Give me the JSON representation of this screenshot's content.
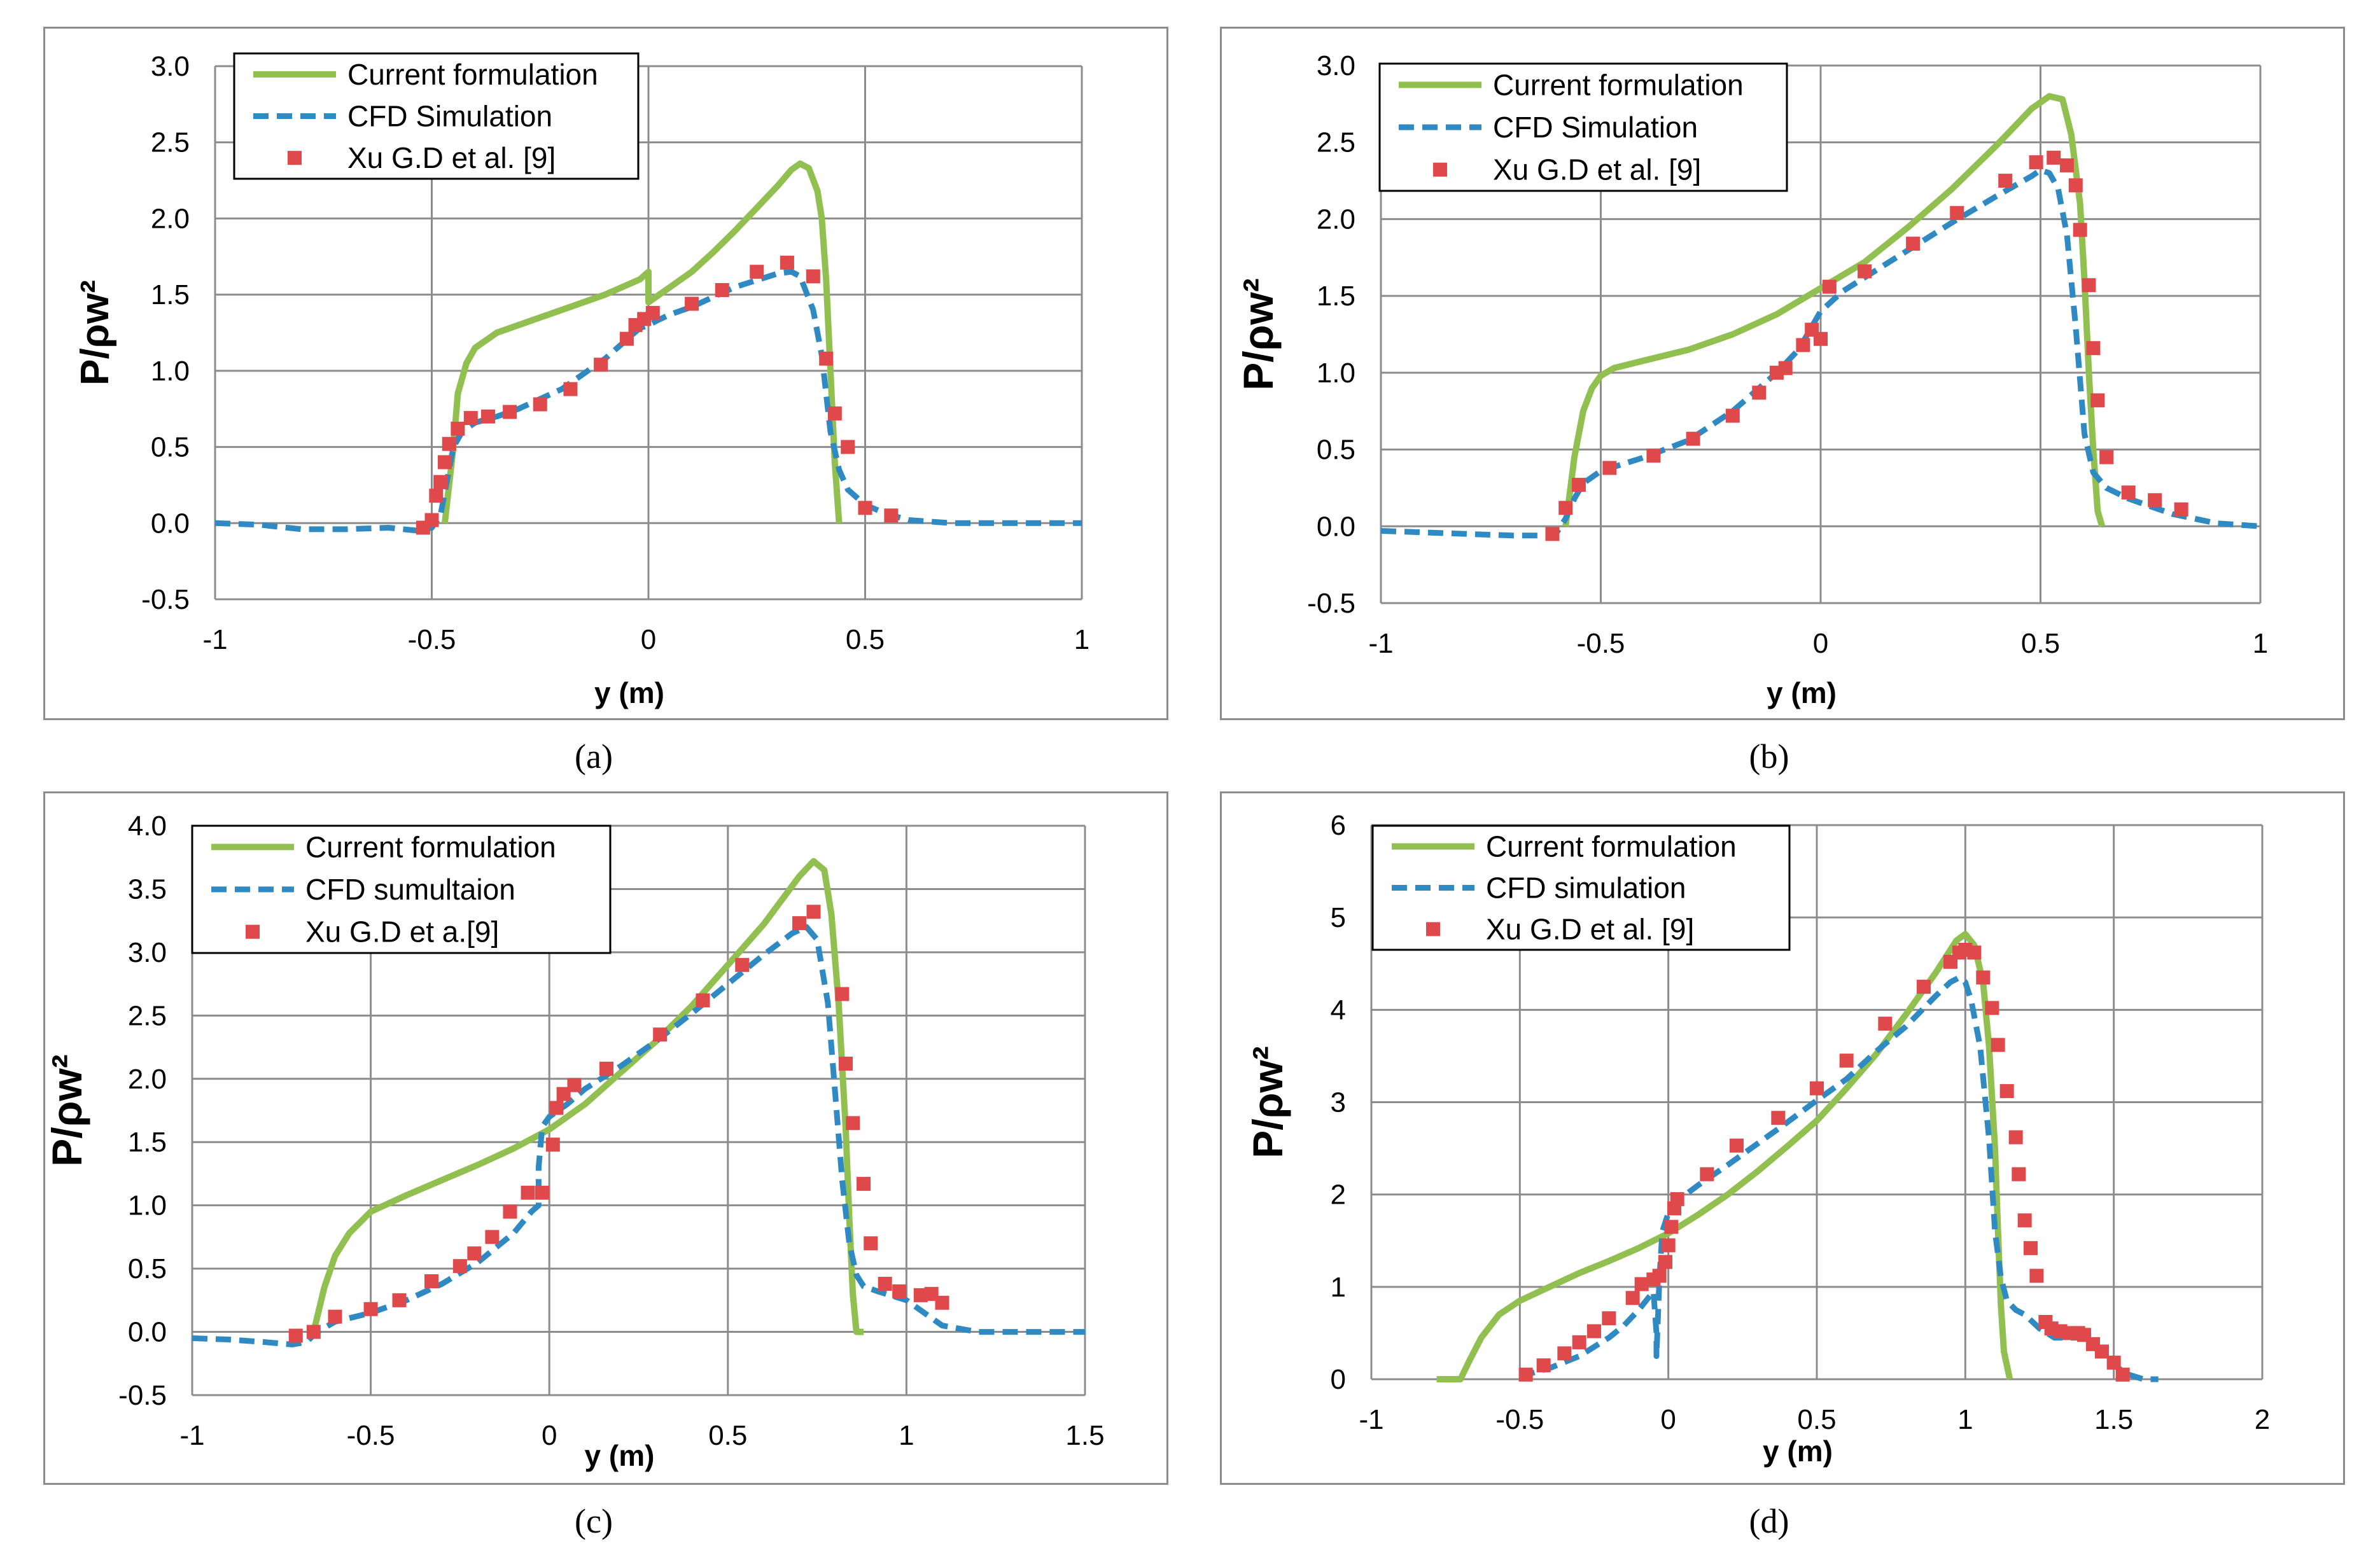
{
  "captions": [
    "(a)",
    "(b)",
    "(c)",
    "(d)"
  ],
  "colors": {
    "green": "#92c050",
    "blue": "#2f8ac4",
    "red": "#e0494b",
    "grid": "#8c8c8c"
  },
  "chart_data": [
    {
      "type": "line",
      "xlabel": "y (m)",
      "ylabel": "P/ρw²",
      "xlim": [
        -1,
        1
      ],
      "ylim": [
        -0.5,
        3.0
      ],
      "xticks": [
        "-1",
        "-0.5",
        "0",
        "0.5",
        "1"
      ],
      "yticks": [
        "-0.5",
        "0.0",
        "0.5",
        "1.0",
        "1.5",
        "2.0",
        "2.5",
        "3.0"
      ],
      "grid": true,
      "legend_position": "top-left",
      "legend": [
        "Current formulation",
        "CFD Simulation",
        "Xu G.D et al. [9]"
      ],
      "series": [
        {
          "name": "Current formulation",
          "style": "solid",
          "color": "green",
          "x": [
            -0.47,
            -0.45,
            -0.44,
            -0.42,
            -0.4,
            -0.35,
            -0.3,
            -0.2,
            -0.1,
            -0.02,
            0.0,
            0.0,
            0.05,
            0.1,
            0.15,
            0.2,
            0.25,
            0.3,
            0.33,
            0.35,
            0.37,
            0.39,
            0.4,
            0.41,
            0.42,
            0.43,
            0.44
          ],
          "y": [
            0.0,
            0.5,
            0.85,
            1.05,
            1.15,
            1.25,
            1.3,
            1.4,
            1.5,
            1.6,
            1.65,
            1.45,
            1.55,
            1.65,
            1.78,
            1.92,
            2.07,
            2.22,
            2.32,
            2.36,
            2.33,
            2.18,
            2.0,
            1.6,
            1.0,
            0.4,
            0.0
          ]
        },
        {
          "name": "CFD Simulation",
          "style": "dashed",
          "color": "blue",
          "x": [
            -1.0,
            -0.9,
            -0.8,
            -0.7,
            -0.6,
            -0.53,
            -0.5,
            -0.48,
            -0.46,
            -0.45,
            -0.43,
            -0.4,
            -0.35,
            -0.3,
            -0.2,
            -0.1,
            -0.02,
            0.0,
            0.02,
            0.05,
            0.1,
            0.2,
            0.3,
            0.33,
            0.35,
            0.38,
            0.4,
            0.42,
            0.44,
            0.46,
            0.5,
            0.55,
            0.6,
            0.7,
            0.8,
            1.0
          ],
          "y": [
            0.0,
            -0.01,
            -0.04,
            -0.04,
            -0.03,
            -0.05,
            -0.03,
            0.05,
            0.35,
            0.5,
            0.6,
            0.66,
            0.7,
            0.75,
            0.88,
            1.08,
            1.28,
            1.3,
            1.33,
            1.37,
            1.42,
            1.55,
            1.64,
            1.65,
            1.62,
            1.4,
            1.1,
            0.6,
            0.35,
            0.22,
            0.12,
            0.06,
            0.02,
            0.0,
            0.0,
            0.0
          ]
        },
        {
          "name": "Xu G.D et al. [9]",
          "style": "markers",
          "color": "red",
          "x": [
            -0.52,
            -0.5,
            -0.49,
            -0.48,
            -0.47,
            -0.46,
            -0.44,
            -0.41,
            -0.37,
            -0.32,
            -0.25,
            -0.18,
            -0.11,
            -0.05,
            -0.03,
            -0.01,
            0.01,
            0.1,
            0.17,
            0.25,
            0.32,
            0.38,
            0.41,
            0.43,
            0.46,
            0.5,
            0.56
          ],
          "y": [
            -0.03,
            0.02,
            0.18,
            0.27,
            0.4,
            0.52,
            0.62,
            0.69,
            0.7,
            0.73,
            0.78,
            0.88,
            1.04,
            1.21,
            1.3,
            1.34,
            1.38,
            1.44,
            1.53,
            1.65,
            1.71,
            1.62,
            1.08,
            0.72,
            0.5,
            0.1,
            0.05
          ]
        }
      ]
    },
    {
      "type": "line",
      "xlabel": "y (m)",
      "ylabel": "P/ρw²",
      "xlim": [
        -1,
        1
      ],
      "ylim": [
        -0.5,
        3.0
      ],
      "xticks": [
        "-1",
        "-0.5",
        "0",
        "0.5",
        "1"
      ],
      "yticks": [
        "-0.5",
        "0.0",
        "0.5",
        "1.0",
        "1.5",
        "2.0",
        "2.5",
        "3.0"
      ],
      "grid": true,
      "legend_position": "top-left",
      "legend": [
        "Current formulation",
        "CFD Simulation",
        "Xu G.D et al. [9]"
      ],
      "series": [
        {
          "name": "Current formulation",
          "style": "solid",
          "color": "green",
          "x": [
            -0.58,
            -0.56,
            -0.54,
            -0.52,
            -0.5,
            -0.47,
            -0.4,
            -0.3,
            -0.2,
            -0.1,
            0.0,
            0.1,
            0.2,
            0.3,
            0.4,
            0.48,
            0.52,
            0.55,
            0.57,
            0.59,
            0.6,
            0.61,
            0.62,
            0.63,
            0.64
          ],
          "y": [
            0.0,
            0.45,
            0.75,
            0.9,
            0.98,
            1.03,
            1.08,
            1.15,
            1.25,
            1.38,
            1.55,
            1.72,
            1.95,
            2.2,
            2.48,
            2.72,
            2.8,
            2.78,
            2.55,
            2.1,
            1.6,
            1.0,
            0.5,
            0.1,
            0.0
          ]
        },
        {
          "name": "CFD Simulation",
          "style": "dashed",
          "color": "blue",
          "x": [
            -1.0,
            -0.9,
            -0.8,
            -0.7,
            -0.62,
            -0.6,
            -0.58,
            -0.56,
            -0.54,
            -0.5,
            -0.4,
            -0.3,
            -0.2,
            -0.1,
            -0.05,
            0.0,
            0.05,
            0.1,
            0.2,
            0.3,
            0.4,
            0.48,
            0.5,
            0.52,
            0.54,
            0.56,
            0.58,
            0.6,
            0.62,
            0.65,
            0.7,
            0.8,
            0.9,
            1.0
          ],
          "y": [
            -0.03,
            -0.04,
            -0.05,
            -0.06,
            -0.06,
            -0.04,
            0.05,
            0.18,
            0.28,
            0.36,
            0.45,
            0.56,
            0.75,
            1.0,
            1.15,
            1.4,
            1.53,
            1.62,
            1.8,
            1.98,
            2.15,
            2.28,
            2.32,
            2.3,
            2.2,
            1.9,
            1.3,
            0.6,
            0.35,
            0.25,
            0.18,
            0.08,
            0.02,
            0.0
          ]
        },
        {
          "name": "Xu G.D et al. [9]",
          "style": "markers",
          "color": "red",
          "x": [
            -0.61,
            -0.58,
            -0.55,
            -0.48,
            -0.38,
            -0.29,
            -0.2,
            -0.14,
            -0.1,
            -0.08,
            -0.04,
            -0.02,
            0.0,
            0.02,
            0.1,
            0.21,
            0.31,
            0.42,
            0.49,
            0.53,
            0.56,
            0.58,
            0.59,
            0.61,
            0.62,
            0.63,
            0.65,
            0.7,
            0.76,
            0.82
          ],
          "y": [
            -0.05,
            0.12,
            0.27,
            0.38,
            0.46,
            0.57,
            0.72,
            0.87,
            1.0,
            1.03,
            1.18,
            1.28,
            1.22,
            1.56,
            1.66,
            1.84,
            2.04,
            2.25,
            2.37,
            2.4,
            2.35,
            2.22,
            1.93,
            1.57,
            1.16,
            0.82,
            0.45,
            0.22,
            0.17,
            0.11
          ]
        }
      ]
    },
    {
      "type": "line",
      "xlabel": "y (m)",
      "ylabel": "P/ρw²",
      "xlim": [
        -1,
        1.5
      ],
      "ylim": [
        -0.5,
        4.0
      ],
      "xticks": [
        "-1",
        "-0.5",
        "0",
        "0.5",
        "1",
        "1.5"
      ],
      "yticks": [
        "-0.5",
        "0.0",
        "0.5",
        "1.0",
        "1.5",
        "2.0",
        "2.5",
        "3.0",
        "3.5",
        "4.0"
      ],
      "grid": true,
      "legend_position": "top-left",
      "legend": [
        "Current formulation",
        "CFD sumultaion",
        "Xu G.D et a.[9]"
      ],
      "series": [
        {
          "name": "Current formulation",
          "style": "solid",
          "color": "green",
          "x": [
            -0.66,
            -0.63,
            -0.6,
            -0.56,
            -0.5,
            -0.4,
            -0.3,
            -0.2,
            -0.1,
            0.0,
            0.1,
            0.2,
            0.3,
            0.4,
            0.5,
            0.6,
            0.7,
            0.74,
            0.77,
            0.79,
            0.81,
            0.83,
            0.84,
            0.85,
            0.86,
            0.88
          ],
          "y": [
            0.0,
            0.35,
            0.6,
            0.78,
            0.95,
            1.08,
            1.2,
            1.32,
            1.45,
            1.6,
            1.8,
            2.05,
            2.3,
            2.58,
            2.9,
            3.22,
            3.6,
            3.72,
            3.65,
            3.3,
            2.6,
            1.6,
            0.9,
            0.3,
            0.0,
            0.0
          ]
        },
        {
          "name": "CFD sumultaion",
          "style": "dashed",
          "color": "blue",
          "x": [
            -1.0,
            -0.9,
            -0.8,
            -0.72,
            -0.68,
            -0.65,
            -0.6,
            -0.5,
            -0.4,
            -0.3,
            -0.2,
            -0.1,
            -0.05,
            -0.03,
            -0.03,
            -0.02,
            0.0,
            0.05,
            0.1,
            0.2,
            0.3,
            0.4,
            0.5,
            0.6,
            0.68,
            0.72,
            0.75,
            0.78,
            0.8,
            0.82,
            0.84,
            0.86,
            0.88,
            0.92,
            1.0,
            1.05,
            1.1,
            1.2,
            1.3,
            1.5
          ],
          "y": [
            -0.05,
            -0.06,
            -0.08,
            -0.1,
            -0.08,
            0.0,
            0.08,
            0.15,
            0.25,
            0.38,
            0.55,
            0.78,
            0.95,
            1.0,
            1.3,
            1.62,
            1.7,
            1.8,
            1.92,
            2.1,
            2.3,
            2.52,
            2.75,
            2.98,
            3.15,
            3.2,
            3.1,
            2.6,
            1.9,
            1.2,
            0.7,
            0.45,
            0.36,
            0.32,
            0.25,
            0.15,
            0.05,
            0.0,
            0.0,
            0.0
          ]
        },
        {
          "name": "Xu G.D et a.[9]",
          "style": "markers",
          "color": "red",
          "x": [
            -0.71,
            -0.66,
            -0.6,
            -0.5,
            -0.42,
            -0.33,
            -0.25,
            -0.21,
            -0.16,
            -0.11,
            -0.06,
            -0.02,
            0.01,
            0.02,
            0.04,
            0.07,
            0.16,
            0.31,
            0.43,
            0.54,
            0.7,
            0.74,
            0.82,
            0.83,
            0.85,
            0.88,
            0.9,
            0.94,
            0.98,
            1.04,
            1.07,
            1.1
          ],
          "y": [
            -0.03,
            0.0,
            0.12,
            0.18,
            0.25,
            0.4,
            0.52,
            0.62,
            0.75,
            0.95,
            1.1,
            1.1,
            1.48,
            1.77,
            1.88,
            1.95,
            2.08,
            2.35,
            2.62,
            2.9,
            3.23,
            3.32,
            2.67,
            2.12,
            1.65,
            1.17,
            0.7,
            0.38,
            0.32,
            0.29,
            0.3,
            0.23
          ]
        }
      ]
    },
    {
      "type": "line",
      "xlabel": "y (m)",
      "ylabel": "P/ρw²",
      "xlim": [
        -1,
        2
      ],
      "ylim": [
        0,
        6
      ],
      "xticks": [
        "-1",
        "-0.5",
        "0",
        "0.5",
        "1",
        "1.5",
        "2"
      ],
      "yticks": [
        "0",
        "1",
        "2",
        "3",
        "4",
        "5",
        "6"
      ],
      "grid": true,
      "legend_position": "top-left",
      "legend": [
        "Current formulation",
        "CFD simulation",
        "Xu G.D et al. [9]"
      ],
      "series": [
        {
          "name": "Current formulation",
          "style": "solid",
          "color": "green",
          "x": [
            -0.78,
            -0.7,
            -0.67,
            -0.63,
            -0.57,
            -0.5,
            -0.4,
            -0.3,
            -0.2,
            -0.1,
            0.0,
            0.1,
            0.2,
            0.3,
            0.4,
            0.5,
            0.6,
            0.7,
            0.8,
            0.9,
            0.97,
            1.0,
            1.03,
            1.06,
            1.08,
            1.1,
            1.11,
            1.12,
            1.13,
            1.15
          ],
          "y": [
            0.0,
            0.0,
            0.2,
            0.45,
            0.7,
            0.85,
            1.0,
            1.15,
            1.28,
            1.42,
            1.58,
            1.78,
            2.0,
            2.25,
            2.52,
            2.8,
            3.15,
            3.52,
            3.95,
            4.4,
            4.75,
            4.82,
            4.7,
            4.3,
            3.6,
            2.5,
            1.6,
            0.8,
            0.3,
            0.0
          ]
        },
        {
          "name": "CFD simulation",
          "style": "dashed",
          "color": "blue",
          "x": [
            -0.5,
            -0.4,
            -0.3,
            -0.2,
            -0.15,
            -0.1,
            -0.05,
            -0.04,
            -0.04,
            -0.03,
            -0.02,
            0.0,
            0.02,
            0.05,
            0.1,
            0.2,
            0.3,
            0.4,
            0.5,
            0.6,
            0.7,
            0.8,
            0.9,
            0.95,
            0.98,
            1.0,
            1.02,
            1.05,
            1.08,
            1.1,
            1.12,
            1.14,
            1.17,
            1.2,
            1.25,
            1.3,
            1.4,
            1.45,
            1.5,
            1.55,
            1.6,
            1.65
          ],
          "y": [
            0.03,
            0.12,
            0.25,
            0.45,
            0.58,
            0.75,
            0.95,
            0.5,
            0.25,
            1.1,
            1.6,
            1.8,
            1.88,
            1.98,
            2.1,
            2.32,
            2.55,
            2.78,
            3.02,
            3.25,
            3.55,
            3.82,
            4.15,
            4.3,
            4.35,
            4.3,
            4.1,
            3.6,
            2.6,
            1.6,
            1.1,
            0.85,
            0.75,
            0.7,
            0.55,
            0.45,
            0.45,
            0.3,
            0.15,
            0.05,
            0.0,
            0.0
          ]
        },
        {
          "name": "Xu G.D et al. [9]",
          "style": "markers",
          "color": "red",
          "x": [
            -0.48,
            -0.42,
            -0.35,
            -0.3,
            -0.25,
            -0.2,
            -0.12,
            -0.09,
            -0.05,
            -0.03,
            -0.01,
            0.0,
            0.01,
            0.02,
            0.03,
            0.13,
            0.23,
            0.37,
            0.5,
            0.6,
            0.73,
            0.86,
            0.95,
            0.98,
            1.0,
            1.03,
            1.06,
            1.09,
            1.11,
            1.14,
            1.17,
            1.18,
            1.2,
            1.22,
            1.24,
            1.27,
            1.29,
            1.32,
            1.35,
            1.38,
            1.4,
            1.43,
            1.46,
            1.5,
            1.53
          ],
          "y": [
            0.05,
            0.15,
            0.28,
            0.4,
            0.52,
            0.66,
            0.88,
            1.03,
            1.08,
            1.12,
            1.27,
            1.45,
            1.65,
            1.85,
            1.95,
            2.22,
            2.53,
            2.83,
            3.15,
            3.45,
            3.85,
            4.25,
            4.52,
            4.62,
            4.65,
            4.62,
            4.35,
            4.02,
            3.62,
            3.12,
            2.62,
            2.22,
            1.72,
            1.42,
            1.12,
            0.62,
            0.55,
            0.52,
            0.5,
            0.5,
            0.48,
            0.38,
            0.3,
            0.18,
            0.05
          ]
        }
      ]
    }
  ]
}
